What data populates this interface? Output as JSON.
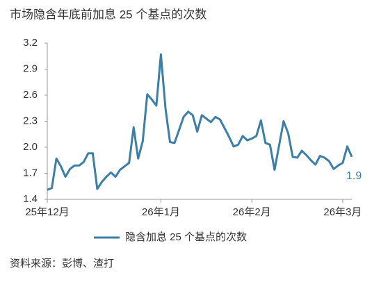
{
  "chart_data": {
    "type": "line",
    "title": "市场隐含年底前加息 25 个基点的次数",
    "source": "资料来源：彭博、渣打",
    "categories": [
      "25年12月",
      null,
      null,
      null,
      null,
      null,
      null,
      null,
      null,
      null,
      null,
      null,
      null,
      null,
      null,
      null,
      null,
      null,
      null,
      null,
      null,
      null,
      null,
      null,
      null,
      "26年1月",
      null,
      null,
      null,
      null,
      null,
      null,
      null,
      null,
      null,
      null,
      null,
      null,
      null,
      null,
      null,
      null,
      null,
      null,
      null,
      "26年2月",
      null,
      null,
      null,
      null,
      null,
      null,
      null,
      null,
      null,
      null,
      null,
      null,
      null,
      null,
      null,
      null,
      null,
      null,
      null,
      "26年3月",
      null,
      null
    ],
    "series": [
      {
        "name": "隐含加息 25 个基点的次数",
        "color": "#3b7fa8",
        "values": [
          1.51,
          1.53,
          1.87,
          1.78,
          1.66,
          1.75,
          1.79,
          1.79,
          1.83,
          1.93,
          1.93,
          1.52,
          1.6,
          1.66,
          1.71,
          1.66,
          1.74,
          1.78,
          1.82,
          2.23,
          1.87,
          2.07,
          2.61,
          2.55,
          2.48,
          3.07,
          2.45,
          2.06,
          2.05,
          2.2,
          2.35,
          2.41,
          2.37,
          2.18,
          2.37,
          2.33,
          2.29,
          2.35,
          2.32,
          2.22,
          2.12,
          2.01,
          2.03,
          2.13,
          2.08,
          2.1,
          2.13,
          2.31,
          2.05,
          2.03,
          1.74,
          2.02,
          2.3,
          2.16,
          1.89,
          1.88,
          1.96,
          1.91,
          1.85,
          1.8,
          1.9,
          1.88,
          1.84,
          1.75,
          1.79,
          1.82,
          2.01,
          1.89
        ],
        "value_labels": [
          null,
          null,
          null,
          null,
          null,
          null,
          null,
          null,
          null,
          null,
          null,
          null,
          null,
          null,
          null,
          null,
          null,
          null,
          null,
          null,
          null,
          null,
          null,
          null,
          null,
          null,
          null,
          null,
          null,
          null,
          null,
          null,
          null,
          null,
          null,
          null,
          null,
          null,
          null,
          null,
          null,
          null,
          null,
          null,
          null,
          null,
          null,
          null,
          null,
          null,
          null,
          null,
          null,
          null,
          null,
          null,
          null,
          null,
          null,
          null,
          null,
          null,
          null,
          null,
          null,
          null,
          null,
          "1.9"
        ]
      }
    ],
    "ylim": [
      1.4,
      3.2
    ],
    "yticks": [
      1.4,
      1.7,
      {
        "value": 2,
        "label": "2.0"
      },
      2.3,
      2.6,
      2.9,
      3.2
    ],
    "grid": false
  }
}
